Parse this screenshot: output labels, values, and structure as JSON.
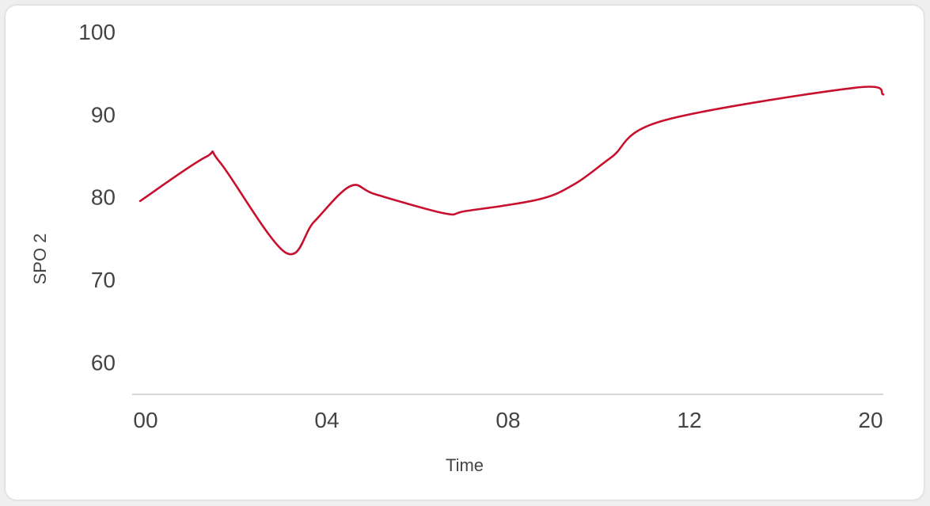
{
  "chart_data": {
    "type": "line",
    "title": "",
    "xlabel": "Time",
    "ylabel": "SPO 2",
    "x_ticks": [
      "00",
      "04",
      "08",
      "12",
      "20"
    ],
    "y_ticks": [
      100,
      90,
      80,
      70,
      60
    ],
    "ylim": [
      56.1,
      100
    ],
    "line_color": "#c8102e",
    "grid": false,
    "legend": "none",
    "series": [
      {
        "x": [
          0,
          1.8,
          2.2,
          4.0,
          4.8,
          5.8,
          6.5,
          8.4,
          9.0,
          11.0,
          12.0,
          13.0,
          14.4,
          19.7,
          20.5
        ],
        "values": [
          79.5,
          84.8,
          84.2,
          73.3,
          77.0,
          81.3,
          80.3,
          78.0,
          78.3,
          79.7,
          81.6,
          84.8,
          89.2,
          93.2,
          92.4
        ]
      }
    ]
  }
}
